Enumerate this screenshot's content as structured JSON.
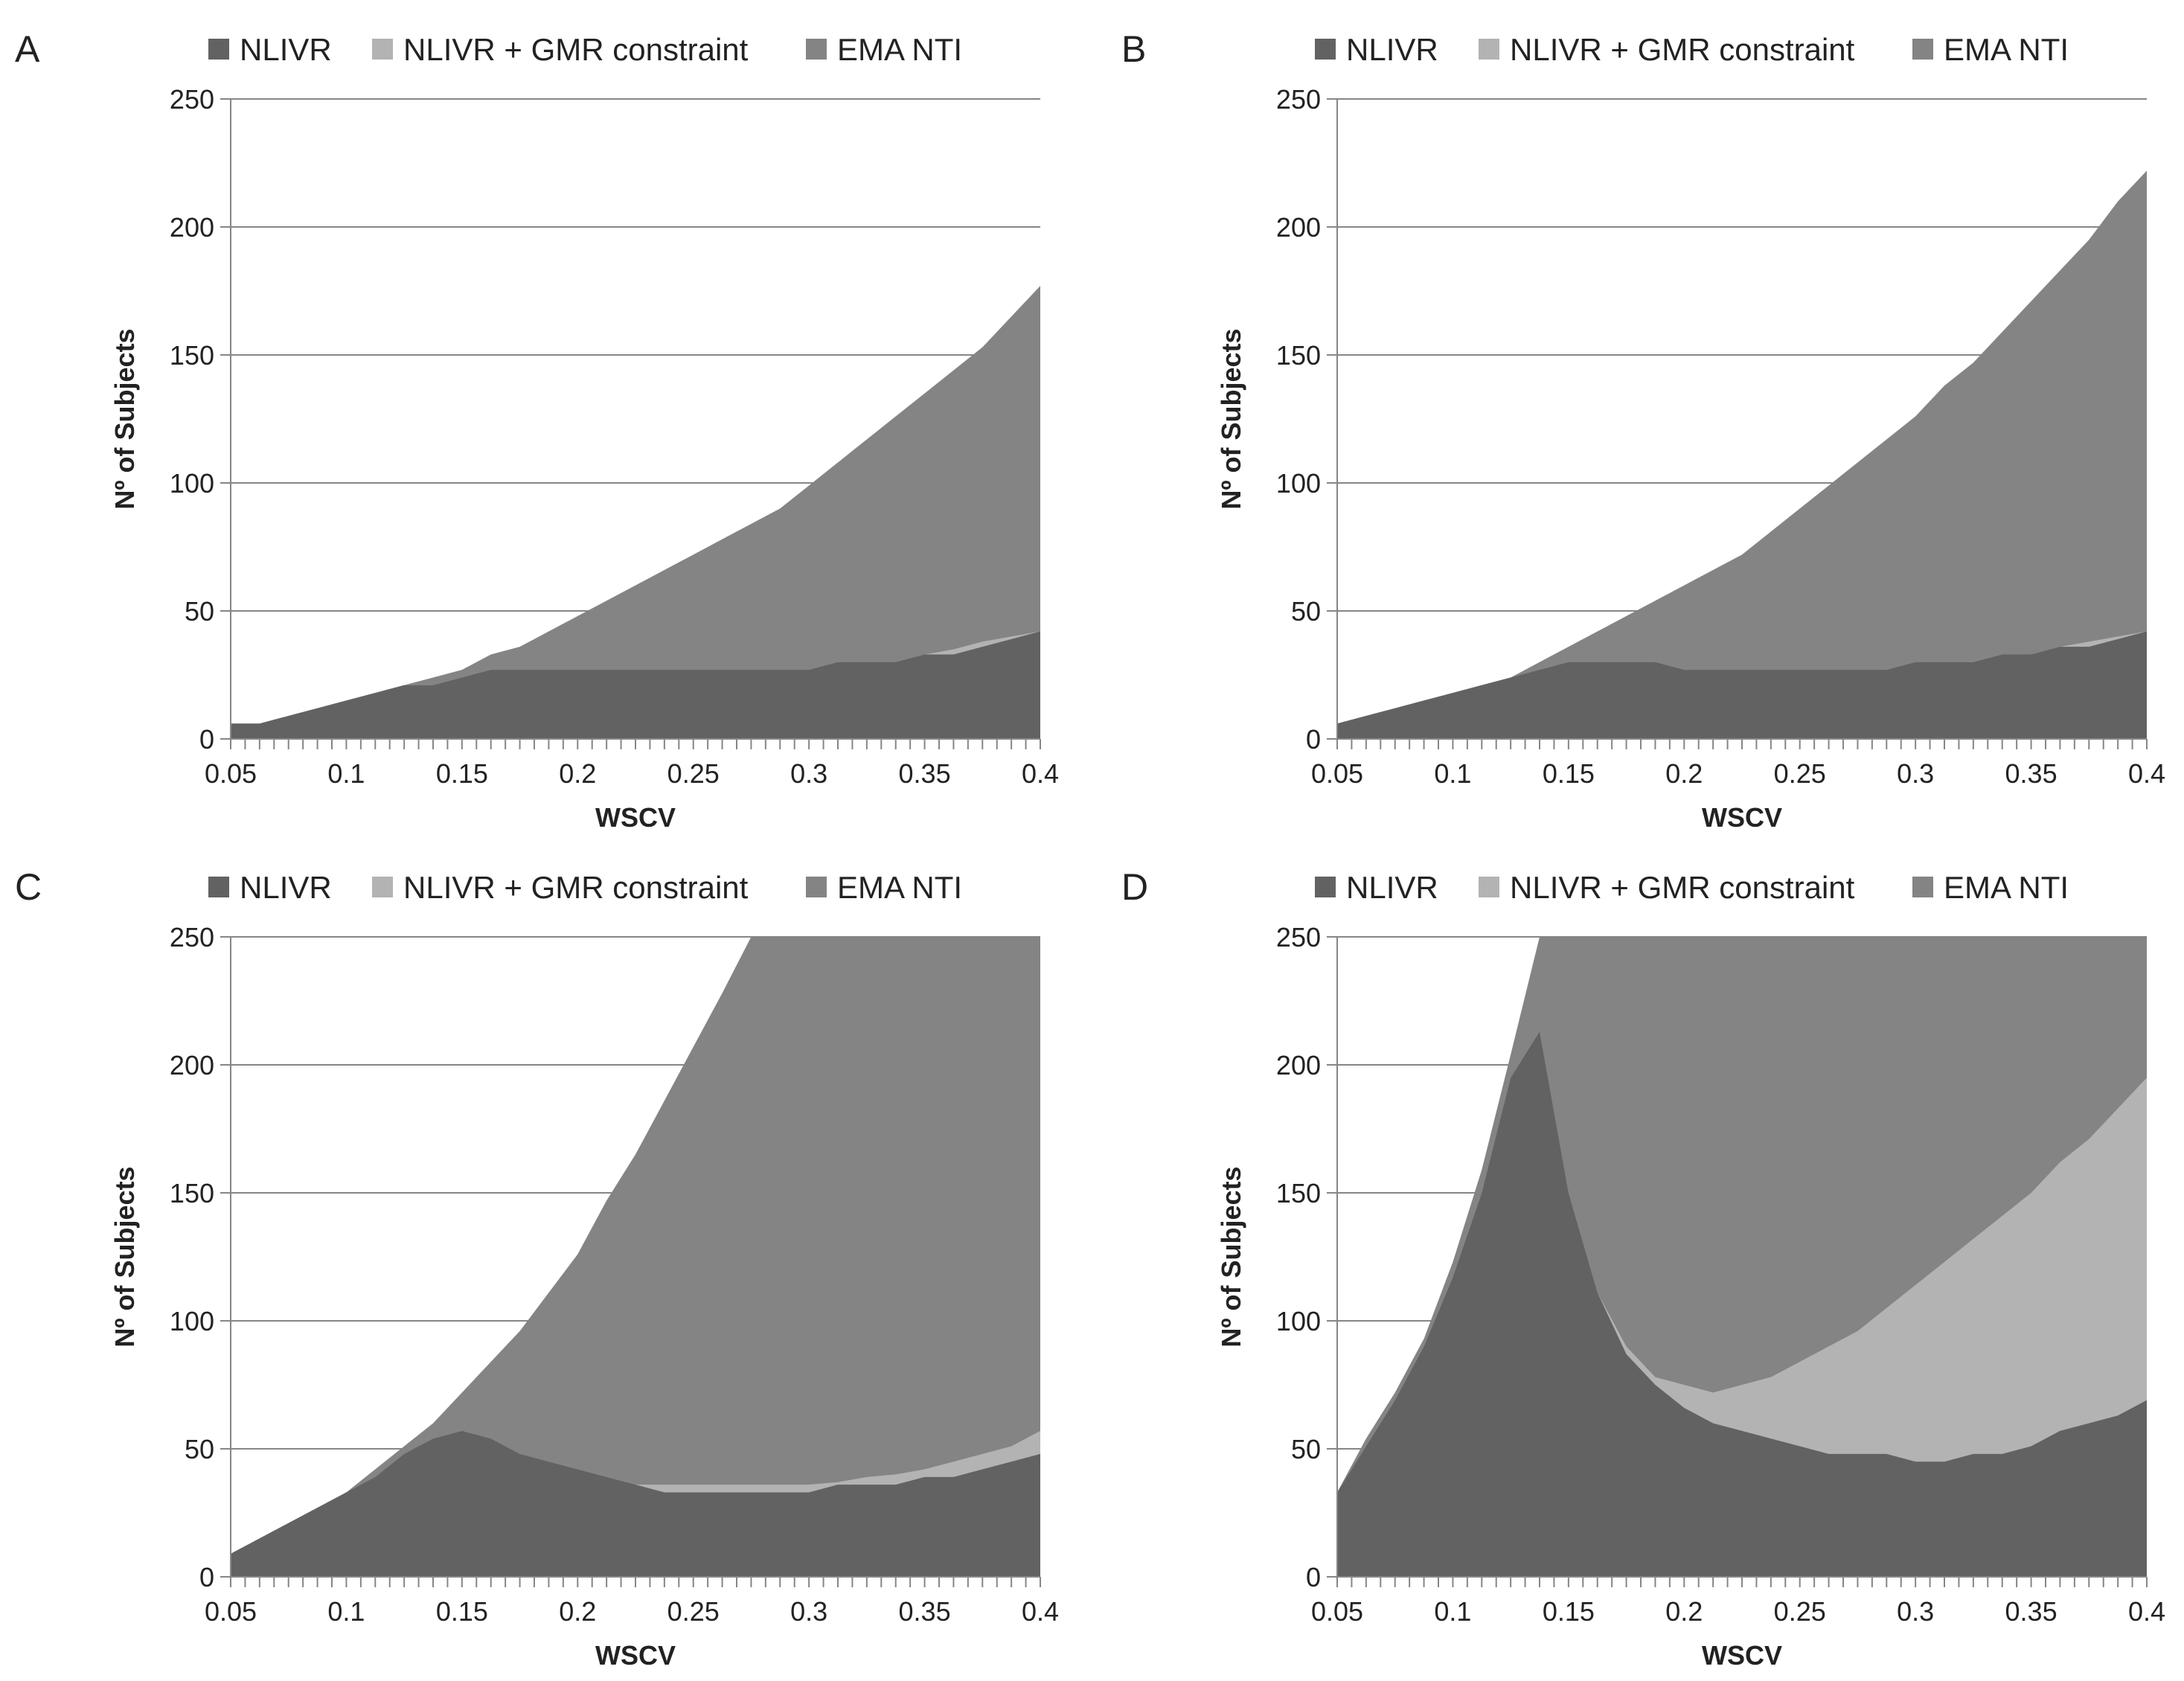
{
  "chart_data": [
    {
      "panel": "A",
      "type": "area",
      "xlabel": "WSCV",
      "ylabel": "Nº of Subjects",
      "ylim": [
        0,
        250
      ],
      "xlim": [
        0.05,
        0.4
      ],
      "yticks": [
        "0",
        "50",
        "100",
        "150",
        "200",
        "250"
      ],
      "xticks": [
        "0.05",
        "0.1",
        "0.15",
        "0.2",
        "0.25",
        "0.3",
        "0.35",
        "0.4"
      ],
      "legend": [
        "NLIVR",
        "NLIVR + GMR constraint",
        "EMA NTI"
      ],
      "x": [
        0.05,
        0.0625,
        0.075,
        0.0875,
        0.1,
        0.1125,
        0.125,
        0.1375,
        0.15,
        0.1625,
        0.175,
        0.1875,
        0.2,
        0.2125,
        0.225,
        0.2375,
        0.25,
        0.2625,
        0.275,
        0.2875,
        0.3,
        0.3125,
        0.325,
        0.3375,
        0.35,
        0.3625,
        0.375,
        0.3875,
        0.4
      ],
      "series": [
        {
          "name": "NLIVR",
          "values": [
            6,
            6,
            9,
            12,
            15,
            18,
            21,
            21,
            24,
            27,
            27,
            27,
            27,
            27,
            27,
            27,
            27,
            27,
            27,
            27,
            27,
            30,
            30,
            30,
            33,
            33,
            36,
            39,
            42
          ]
        },
        {
          "name": "NLIVR + GMR constraint",
          "values": [
            6,
            6,
            9,
            12,
            15,
            18,
            21,
            21,
            24,
            27,
            27,
            27,
            27,
            27,
            27,
            27,
            27,
            27,
            27,
            27,
            27,
            30,
            30,
            30,
            33,
            35,
            38,
            40,
            42
          ]
        },
        {
          "name": "EMA NTI",
          "values": [
            6,
            6,
            9,
            12,
            15,
            18,
            21,
            24,
            27,
            33,
            36,
            42,
            48,
            54,
            60,
            66,
            72,
            78,
            84,
            90,
            99,
            108,
            117,
            126,
            135,
            144,
            153,
            165,
            177
          ]
        }
      ]
    },
    {
      "panel": "B",
      "type": "area",
      "xlabel": "WSCV",
      "ylabel": "Nº of Subjects",
      "ylim": [
        0,
        250
      ],
      "xlim": [
        0.05,
        0.4
      ],
      "yticks": [
        "0",
        "50",
        "100",
        "150",
        "200",
        "250"
      ],
      "xticks": [
        "0.05",
        "0.1",
        "0.15",
        "0.2",
        "0.25",
        "0.3",
        "0.35",
        "0.4"
      ],
      "legend": [
        "NLIVR",
        "NLIVR + GMR constraint",
        "EMA NTI"
      ],
      "x": [
        0.05,
        0.0625,
        0.075,
        0.0875,
        0.1,
        0.1125,
        0.125,
        0.1375,
        0.15,
        0.1625,
        0.175,
        0.1875,
        0.2,
        0.2125,
        0.225,
        0.2375,
        0.25,
        0.2625,
        0.275,
        0.2875,
        0.3,
        0.3125,
        0.325,
        0.3375,
        0.35,
        0.3625,
        0.375,
        0.3875,
        0.4
      ],
      "series": [
        {
          "name": "NLIVR",
          "values": [
            6,
            9,
            12,
            15,
            18,
            21,
            24,
            27,
            30,
            30,
            30,
            30,
            27,
            27,
            27,
            27,
            27,
            27,
            27,
            27,
            30,
            30,
            30,
            33,
            33,
            36,
            36,
            39,
            42
          ]
        },
        {
          "name": "NLIVR + GMR constraint",
          "values": [
            6,
            9,
            12,
            15,
            18,
            21,
            24,
            27,
            30,
            30,
            30,
            30,
            27,
            27,
            27,
            27,
            27,
            27,
            27,
            27,
            30,
            30,
            30,
            33,
            33,
            36,
            38,
            40,
            42
          ]
        },
        {
          "name": "EMA NTI",
          "values": [
            6,
            9,
            12,
            15,
            18,
            21,
            24,
            30,
            36,
            42,
            48,
            54,
            60,
            66,
            72,
            81,
            90,
            99,
            108,
            117,
            126,
            138,
            147,
            159,
            171,
            183,
            195,
            210,
            222
          ]
        }
      ]
    },
    {
      "panel": "C",
      "type": "area",
      "xlabel": "WSCV",
      "ylabel": "Nº of Subjects",
      "ylim": [
        0,
        250
      ],
      "xlim": [
        0.05,
        0.4
      ],
      "yticks": [
        "0",
        "50",
        "100",
        "150",
        "200",
        "250"
      ],
      "xticks": [
        "0.05",
        "0.1",
        "0.15",
        "0.2",
        "0.25",
        "0.3",
        "0.35",
        "0.4"
      ],
      "legend": [
        "NLIVR",
        "NLIVR + GMR constraint",
        "EMA NTI"
      ],
      "x": [
        0.05,
        0.0625,
        0.075,
        0.0875,
        0.1,
        0.1125,
        0.125,
        0.1375,
        0.15,
        0.1625,
        0.175,
        0.1875,
        0.2,
        0.2125,
        0.225,
        0.2375,
        0.25,
        0.2625,
        0.275,
        0.2875,
        0.3,
        0.3125,
        0.325,
        0.3375,
        0.35,
        0.3625,
        0.375,
        0.3875,
        0.4
      ],
      "series": [
        {
          "name": "NLIVR",
          "values": [
            9,
            15,
            21,
            27,
            33,
            39,
            48,
            54,
            57,
            54,
            48,
            45,
            42,
            39,
            36,
            33,
            33,
            33,
            33,
            33,
            33,
            36,
            36,
            36,
            39,
            39,
            42,
            45,
            48
          ]
        },
        {
          "name": "NLIVR + GMR constraint",
          "values": [
            9,
            15,
            21,
            27,
            33,
            39,
            48,
            54,
            57,
            54,
            48,
            45,
            42,
            39,
            36,
            36,
            36,
            36,
            36,
            36,
            36,
            37,
            39,
            40,
            42,
            45,
            48,
            51,
            57
          ]
        },
        {
          "name": "EMA NTI",
          "values": [
            9,
            15,
            21,
            27,
            33,
            42,
            51,
            60,
            72,
            84,
            96,
            111,
            126,
            147,
            165,
            186,
            207,
            228,
            250,
            250,
            250,
            250,
            250,
            250,
            250,
            250,
            250,
            250,
            250
          ]
        }
      ]
    },
    {
      "panel": "D",
      "type": "area",
      "xlabel": "WSCV",
      "ylabel": "Nº of Subjects",
      "ylim": [
        0,
        250
      ],
      "xlim": [
        0.05,
        0.4
      ],
      "yticks": [
        "0",
        "50",
        "100",
        "150",
        "200",
        "250"
      ],
      "xticks": [
        "0.05",
        "0.1",
        "0.15",
        "0.2",
        "0.25",
        "0.3",
        "0.35",
        "0.4"
      ],
      "legend": [
        "NLIVR",
        "NLIVR + GMR constraint",
        "EMA NTI"
      ],
      "x": [
        0.05,
        0.0625,
        0.075,
        0.0875,
        0.1,
        0.1125,
        0.125,
        0.1375,
        0.15,
        0.1625,
        0.175,
        0.1875,
        0.2,
        0.2125,
        0.225,
        0.2375,
        0.25,
        0.2625,
        0.275,
        0.2875,
        0.3,
        0.3125,
        0.325,
        0.3375,
        0.35,
        0.3625,
        0.375,
        0.3875,
        0.4
      ],
      "series": [
        {
          "name": "NLIVR",
          "values": [
            33,
            51,
            69,
            90,
            117,
            150,
            195,
            213,
            150,
            111,
            87,
            75,
            66,
            60,
            57,
            54,
            51,
            48,
            48,
            48,
            45,
            45,
            48,
            48,
            51,
            57,
            60,
            63,
            69
          ]
        },
        {
          "name": "NLIVR + GMR constraint",
          "values": [
            33,
            51,
            69,
            90,
            117,
            150,
            195,
            213,
            150,
            111,
            90,
            78,
            75,
            72,
            75,
            78,
            84,
            90,
            96,
            105,
            114,
            123,
            132,
            141,
            150,
            162,
            171,
            183,
            195
          ]
        },
        {
          "name": "EMA NTI",
          "values": [
            33,
            54,
            72,
            93,
            123,
            159,
            204,
            250,
            250,
            250,
            250,
            250,
            250,
            250,
            250,
            250,
            250,
            250,
            250,
            250,
            250,
            250,
            250,
            250,
            250,
            250,
            250,
            250,
            250
          ]
        }
      ]
    }
  ],
  "colors": {
    "nlivr": "#626262",
    "nlivr_gmr": "#b3b3b3",
    "ema_nti": "#848484",
    "gridline": "#868686",
    "axis": "#868686",
    "text": "#222222"
  }
}
